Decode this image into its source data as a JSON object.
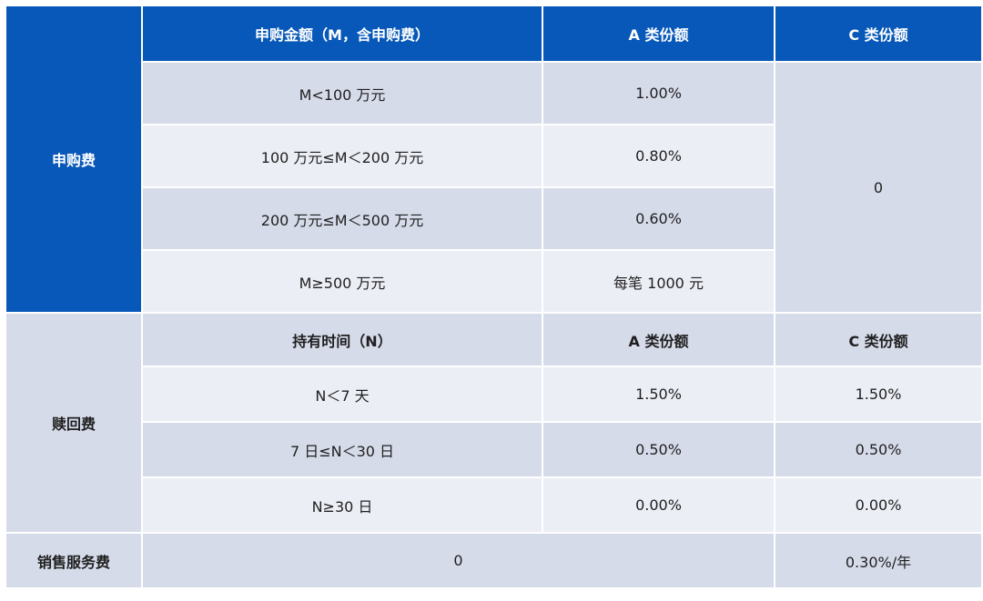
{
  "subscription": {
    "category": "申购费",
    "header": {
      "amount_col": "申购金额（M，含申购费）",
      "class_a_col": "A 类份额",
      "class_c_col": "C 类份额"
    },
    "class_c_value": "0",
    "rows": [
      {
        "amount": "M<100 万元",
        "class_a": "1.00%"
      },
      {
        "amount": "100 万元≤M＜200 万元",
        "class_a": "0.80%"
      },
      {
        "amount": "200 万元≤M＜500 万元",
        "class_a": "0.60%"
      },
      {
        "amount": "M≥500 万元",
        "class_a": "每笔 1000 元"
      }
    ]
  },
  "redemption": {
    "category": "赎回费",
    "header": {
      "period_col": "持有时间（N）",
      "class_a_col": "A 类份额",
      "class_c_col": "C 类份额"
    },
    "rows": [
      {
        "period": "N＜7 天",
        "class_a": "1.50%",
        "class_c": "1.50%"
      },
      {
        "period": "7 日≤N＜30 日",
        "class_a": "0.50%",
        "class_c": "0.50%"
      },
      {
        "period": "N≥30 日",
        "class_a": "0.00%",
        "class_c": "0.00%"
      }
    ]
  },
  "sales_service": {
    "category": "销售服务费",
    "class_a_value": "0",
    "class_c_value": "0.30%/年"
  },
  "colors": {
    "header_blue": "#0758b8",
    "row_dark": "#d6dbea",
    "row_light": "#eceef6"
  }
}
